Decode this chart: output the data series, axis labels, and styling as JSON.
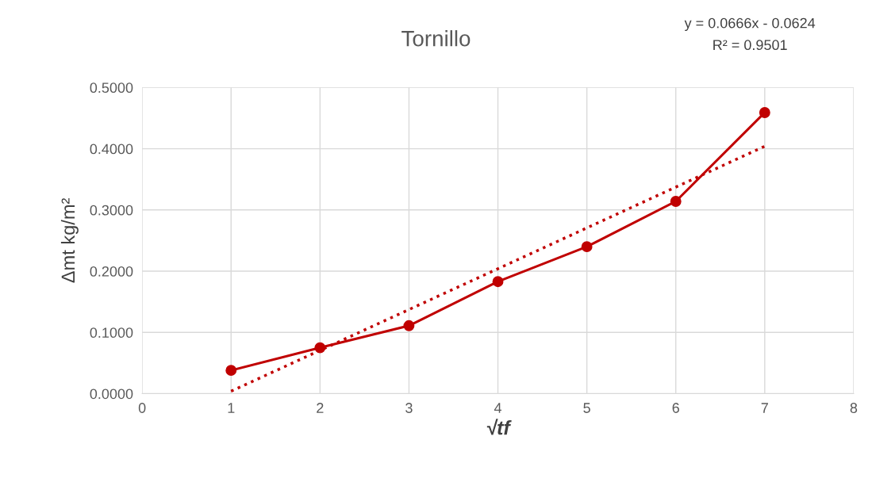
{
  "chart_data": {
    "type": "line",
    "title": "Tornillo",
    "xlabel": "√tf",
    "ylabel": "Δmt kg/m²",
    "annotations": [
      "y = 0.0666x - 0.0624",
      "R² = 0.9501"
    ],
    "x": [
      1,
      2,
      3,
      4,
      5,
      6,
      7
    ],
    "series": [
      {
        "color": "#c00000",
        "values": [
          0.038,
          0.075,
          0.111,
          0.183,
          0.24,
          0.314,
          0.459
        ],
        "marker": "circle",
        "line_style": "solid"
      },
      {
        "type": "line",
        "color": "#c00000",
        "x": [
          1,
          7
        ],
        "values": [
          0.004,
          0.404
        ],
        "marker": "none",
        "line_style": "dotted"
      }
    ],
    "xlim": [
      0,
      8
    ],
    "xticks": [
      0,
      1,
      2,
      3,
      4,
      5,
      6,
      7,
      8
    ],
    "ylim": [
      0,
      0.5
    ],
    "yticks": [
      {
        "value": 0,
        "label": "0.0000"
      },
      {
        "value": 0.1,
        "label": "0.1000"
      },
      {
        "value": 0.2,
        "label": "0.2000"
      },
      {
        "value": 0.3,
        "label": "0.3000"
      },
      {
        "value": 0.4,
        "label": "0.4000"
      },
      {
        "value": 0.5,
        "label": "0.5000"
      }
    ],
    "grid": true,
    "legend": false
  }
}
